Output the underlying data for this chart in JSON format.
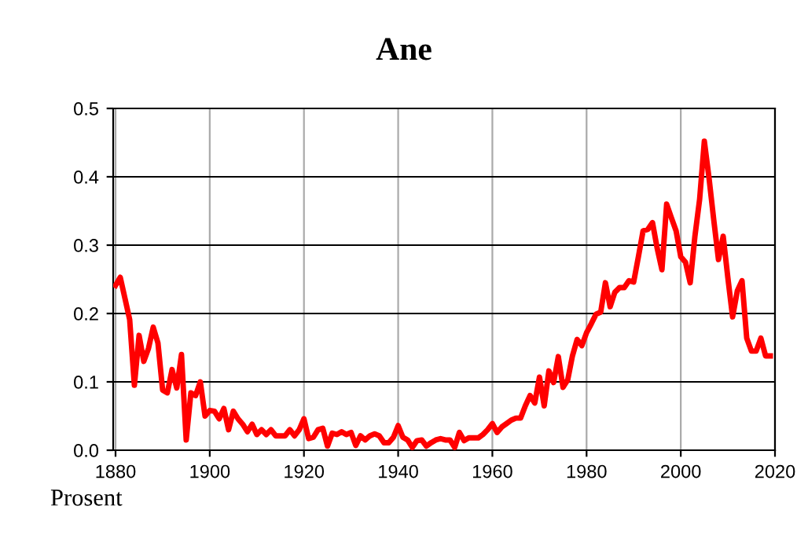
{
  "chart_data": {
    "type": "line",
    "title": "Ane",
    "ylabel": "Prosent",
    "x": [
      1880,
      1881,
      1882,
      1883,
      1884,
      1885,
      1886,
      1887,
      1888,
      1889,
      1890,
      1891,
      1892,
      1893,
      1894,
      1895,
      1896,
      1897,
      1898,
      1899,
      1900,
      1901,
      1902,
      1903,
      1904,
      1905,
      1906,
      1907,
      1908,
      1909,
      1910,
      1911,
      1912,
      1913,
      1914,
      1915,
      1916,
      1917,
      1918,
      1919,
      1920,
      1921,
      1922,
      1923,
      1924,
      1925,
      1926,
      1927,
      1928,
      1929,
      1930,
      1931,
      1932,
      1933,
      1934,
      1935,
      1936,
      1937,
      1938,
      1939,
      1940,
      1941,
      1942,
      1943,
      1944,
      1945,
      1946,
      1947,
      1948,
      1949,
      1950,
      1951,
      1952,
      1953,
      1954,
      1955,
      1956,
      1957,
      1958,
      1959,
      1960,
      1961,
      1962,
      1963,
      1964,
      1965,
      1966,
      1967,
      1968,
      1969,
      1970,
      1971,
      1972,
      1973,
      1974,
      1975,
      1976,
      1977,
      1978,
      1979,
      1980,
      1981,
      1982,
      1983,
      1984,
      1985,
      1986,
      1987,
      1988,
      1989,
      1990,
      1991,
      1992,
      1993,
      1994,
      1995,
      1996,
      1997,
      1998,
      1999,
      2000,
      2001,
      2002,
      2003,
      2004,
      2005,
      2006,
      2007,
      2008,
      2009,
      2010,
      2011,
      2012,
      2013,
      2014,
      2015,
      2016,
      2017,
      2018,
      2019
    ],
    "series": [
      {
        "color": "#ff0000",
        "values": [
          0.241,
          0.253,
          0.222,
          0.191,
          0.095,
          0.168,
          0.13,
          0.149,
          0.18,
          0.157,
          0.088,
          0.084,
          0.118,
          0.091,
          0.14,
          0.015,
          0.084,
          0.08,
          0.1,
          0.05,
          0.058,
          0.057,
          0.046,
          0.061,
          0.03,
          0.057,
          0.046,
          0.038,
          0.027,
          0.038,
          0.023,
          0.03,
          0.023,
          0.03,
          0.021,
          0.021,
          0.021,
          0.03,
          0.021,
          0.03,
          0.046,
          0.017,
          0.019,
          0.03,
          0.032,
          0.006,
          0.025,
          0.023,
          0.027,
          0.023,
          0.026,
          0.007,
          0.021,
          0.015,
          0.021,
          0.024,
          0.021,
          0.011,
          0.011,
          0.019,
          0.036,
          0.019,
          0.015,
          0.004,
          0.014,
          0.015,
          0.006,
          0.011,
          0.015,
          0.017,
          0.015,
          0.015,
          0.004,
          0.026,
          0.014,
          0.018,
          0.018,
          0.018,
          0.023,
          0.03,
          0.039,
          0.026,
          0.034,
          0.039,
          0.044,
          0.047,
          0.047,
          0.065,
          0.08,
          0.069,
          0.107,
          0.065,
          0.116,
          0.099,
          0.137,
          0.092,
          0.103,
          0.138,
          0.162,
          0.153,
          0.172,
          0.185,
          0.199,
          0.202,
          0.245,
          0.21,
          0.231,
          0.238,
          0.238,
          0.248,
          0.246,
          0.283,
          0.321,
          0.323,
          0.333,
          0.295,
          0.264,
          0.36,
          0.34,
          0.321,
          0.283,
          0.275,
          0.245,
          0.313,
          0.367,
          0.452,
          0.398,
          0.337,
          0.279,
          0.313,
          0.252,
          0.195,
          0.233,
          0.248,
          0.164,
          0.145,
          0.145,
          0.164,
          0.138,
          0.138
        ]
      }
    ],
    "xlim": [
      1879.5,
      2020
    ],
    "xticks": [
      1880,
      1900,
      1920,
      1940,
      1960,
      1980,
      2000,
      2020
    ],
    "ylim": [
      0,
      0.5
    ],
    "yticks": [
      {
        "value": 0,
        "label": "0.0"
      },
      {
        "value": 0.1,
        "label": "0.1"
      },
      {
        "value": 0.2,
        "label": "0.2"
      },
      {
        "value": 0.3,
        "label": "0.3"
      },
      {
        "value": 0.4,
        "label": "0.4"
      },
      {
        "value": 0.5,
        "label": "0.5"
      }
    ],
    "grid": true,
    "marker": "none",
    "line_style": "solid"
  }
}
